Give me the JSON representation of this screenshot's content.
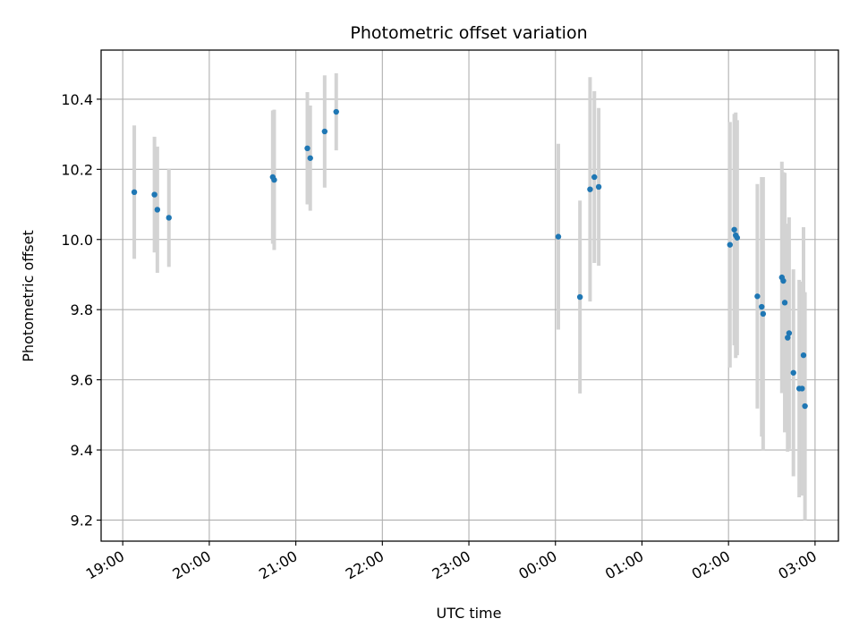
{
  "chart_data": {
    "type": "scatter",
    "title": "Photometric offset variation",
    "xlabel": "UTC time",
    "ylabel": "Photometric offset",
    "grid": true,
    "x_tick_labels": [
      "19:00",
      "20:00",
      "21:00",
      "22:00",
      "23:00",
      "00:00",
      "01:00",
      "02:00",
      "03:00"
    ],
    "x_ticks_hours": [
      0,
      1,
      2,
      3,
      4,
      5,
      6,
      7,
      8
    ],
    "x_range_hours": [
      -0.25,
      8.27
    ],
    "y_ticks": [
      9.2,
      9.4,
      9.6,
      9.8,
      10.0,
      10.2,
      10.4
    ],
    "y_tick_labels": [
      "9.2",
      "9.4",
      "9.6",
      "9.8",
      "10.0",
      "10.2",
      "10.4"
    ],
    "ylim": [
      9.14,
      10.54
    ],
    "colors": {
      "points": "#1f77b4",
      "errorbars": "#d3d3d3",
      "grid": "#b0b0b0"
    },
    "points": [
      {
        "t": "19:08",
        "y": 10.135,
        "err": 0.19
      },
      {
        "t": "19:22",
        "y": 10.128,
        "err": 0.165
      },
      {
        "t": "19:24",
        "y": 10.085,
        "err": 0.18
      },
      {
        "t": "19:32",
        "y": 10.062,
        "err": 0.14
      },
      {
        "t": "20:44",
        "y": 10.178,
        "err": 0.19
      },
      {
        "t": "20:45",
        "y": 10.17,
        "err": 0.2
      },
      {
        "t": "21:08",
        "y": 10.26,
        "err": 0.16
      },
      {
        "t": "21:10",
        "y": 10.232,
        "err": 0.15
      },
      {
        "t": "21:20",
        "y": 10.308,
        "err": 0.16
      },
      {
        "t": "21:28",
        "y": 10.364,
        "err": 0.11
      },
      {
        "t": "00:02",
        "y": 10.008,
        "err": 0.265
      },
      {
        "t": "00:17",
        "y": 9.836,
        "err": 0.275
      },
      {
        "t": "00:24",
        "y": 10.143,
        "err": 0.32
      },
      {
        "t": "00:27",
        "y": 10.178,
        "err": 0.245
      },
      {
        "t": "00:30",
        "y": 10.15,
        "err": 0.225
      },
      {
        "t": "02:01",
        "y": 9.985,
        "err": 0.35
      },
      {
        "t": "02:04",
        "y": 10.028,
        "err": 0.33
      },
      {
        "t": "02:05",
        "y": 10.012,
        "err": 0.35
      },
      {
        "t": "02:06",
        "y": 10.005,
        "err": 0.335
      },
      {
        "t": "02:20",
        "y": 9.838,
        "err": 0.32
      },
      {
        "t": "02:23",
        "y": 9.808,
        "err": 0.37
      },
      {
        "t": "02:24",
        "y": 9.788,
        "err": 0.39
      },
      {
        "t": "02:37",
        "y": 9.892,
        "err": 0.33
      },
      {
        "t": "02:38",
        "y": 9.882,
        "err": 0.31
      },
      {
        "t": "02:39",
        "y": 9.82,
        "err": 0.37
      },
      {
        "t": "02:41",
        "y": 9.72,
        "err": 0.325
      },
      {
        "t": "02:42",
        "y": 9.733,
        "err": 0.33
      },
      {
        "t": "02:45",
        "y": 9.62,
        "err": 0.295
      },
      {
        "t": "02:49",
        "y": 9.575,
        "err": 0.31
      },
      {
        "t": "02:51",
        "y": 9.575,
        "err": 0.305
      },
      {
        "t": "02:52",
        "y": 9.67,
        "err": 0.365
      },
      {
        "t": "02:53",
        "y": 9.525,
        "err": 0.325
      }
    ]
  }
}
